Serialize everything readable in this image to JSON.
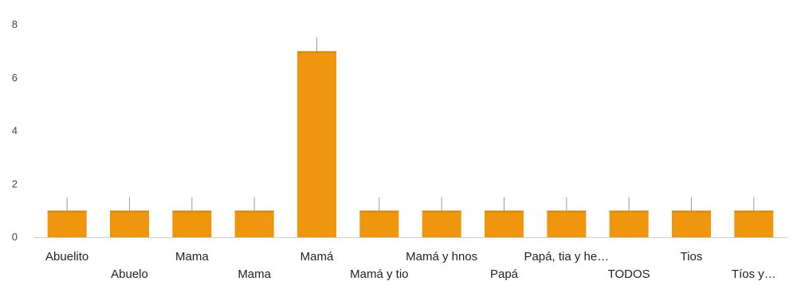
{
  "chart_data": {
    "type": "bar",
    "categories": [
      "Abuelito",
      "Abuelo",
      "Mama",
      "Mama",
      "Mamá",
      "Mamá y tio",
      "Mamá y hnos",
      "Papá",
      "Papá, tia y he…",
      "TODOS",
      "Tios",
      "Tíos y…"
    ],
    "values": [
      1,
      1,
      1,
      1,
      7,
      1,
      1,
      1,
      1,
      1,
      1,
      1
    ],
    "ylim": [
      0,
      8
    ],
    "yticks": [
      0,
      2,
      4,
      6,
      8
    ],
    "grid": false,
    "legend": "none",
    "colors": {
      "bar": "#f0960e",
      "bar_edge": "#d98508"
    }
  }
}
